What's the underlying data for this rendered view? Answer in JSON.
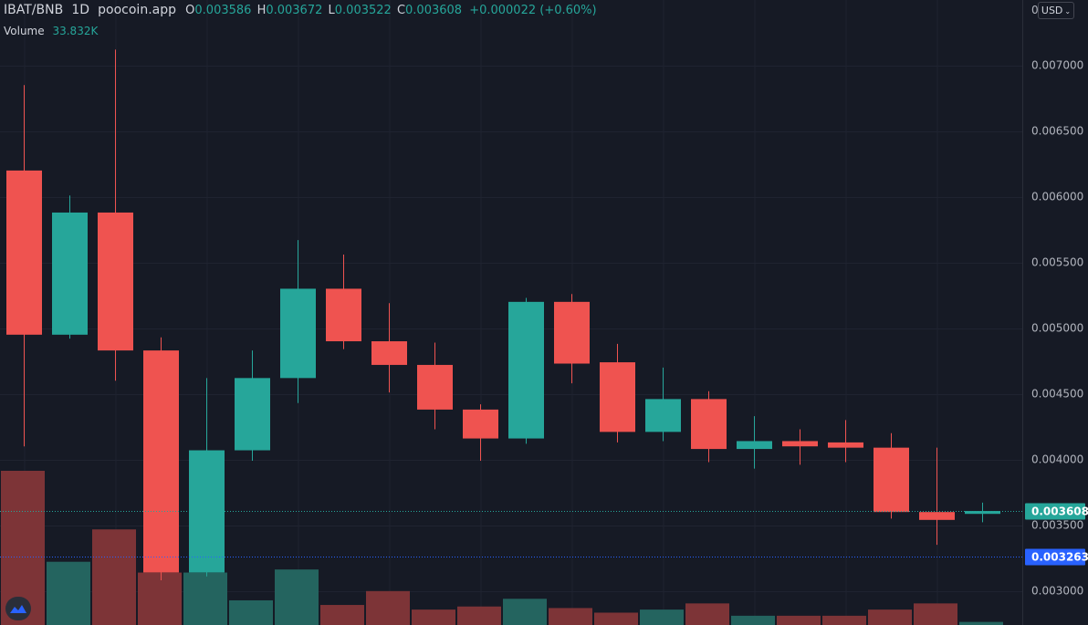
{
  "header": {
    "symbol": "IBAT/BNB",
    "interval": "1D",
    "source": "poocoin.app",
    "o_label": "O",
    "o_value": "0.003586",
    "h_label": "H",
    "h_value": "0.003672",
    "l_label": "L",
    "l_value": "0.003522",
    "c_label": "C",
    "c_value": "0.003608",
    "change": "+0.000022 (+0.60%)",
    "volume_label": "Volume",
    "volume_value": "33.832K"
  },
  "currency_selector": "USD",
  "top_axis_partial_label": "0",
  "colors": {
    "up": "#26a69a",
    "down": "#ef5350",
    "up_volume": "#24645f",
    "down_volume": "#7d3437",
    "background": "#161a25",
    "grid": "#1f2330",
    "axis_text": "#b2b5be",
    "last_price_tag": "#26a69a",
    "marker_tag": "#2962ff"
  },
  "chart_data": {
    "type": "candlestick",
    "y_axis": {
      "side": "right",
      "ticks": [
        "0.007000",
        "0.006500",
        "0.006000",
        "0.005500",
        "0.005000",
        "0.004500",
        "0.004000",
        "0.003500",
        "0.003000"
      ],
      "tick_values": [
        0.007,
        0.0065,
        0.006,
        0.0055,
        0.005,
        0.0045,
        0.004,
        0.0035,
        0.003
      ],
      "range": [
        0.00274,
        0.007498
      ]
    },
    "grid": true,
    "candles": [
      {
        "o": 0.0062,
        "h": 0.00685,
        "l": 0.0041,
        "c": 0.00495
      },
      {
        "o": 0.00495,
        "h": 0.00601,
        "l": 0.00492,
        "c": 0.00588
      },
      {
        "o": 0.00588,
        "h": 0.00712,
        "l": 0.0046,
        "c": 0.00483
      },
      {
        "o": 0.00483,
        "h": 0.00493,
        "l": 0.00308,
        "c": 0.00314
      },
      {
        "o": 0.00314,
        "h": 0.00462,
        "l": 0.00311,
        "c": 0.00407
      },
      {
        "o": 0.00407,
        "h": 0.00483,
        "l": 0.00399,
        "c": 0.00462
      },
      {
        "o": 0.00462,
        "h": 0.00567,
        "l": 0.00443,
        "c": 0.0053
      },
      {
        "o": 0.0053,
        "h": 0.00556,
        "l": 0.00484,
        "c": 0.0049
      },
      {
        "o": 0.0049,
        "h": 0.00519,
        "l": 0.00451,
        "c": 0.00472
      },
      {
        "o": 0.00472,
        "h": 0.00489,
        "l": 0.00423,
        "c": 0.00438
      },
      {
        "o": 0.00438,
        "h": 0.00442,
        "l": 0.00399,
        "c": 0.00416
      },
      {
        "o": 0.00416,
        "h": 0.00523,
        "l": 0.00412,
        "c": 0.0052
      },
      {
        "o": 0.0052,
        "h": 0.00526,
        "l": 0.00458,
        "c": 0.00473
      },
      {
        "o": 0.00474,
        "h": 0.00488,
        "l": 0.00413,
        "c": 0.00421
      },
      {
        "o": 0.00421,
        "h": 0.0047,
        "l": 0.00414,
        "c": 0.00446
      },
      {
        "o": 0.00446,
        "h": 0.00452,
        "l": 0.00398,
        "c": 0.00408
      },
      {
        "o": 0.00408,
        "h": 0.00433,
        "l": 0.00393,
        "c": 0.00414
      },
      {
        "o": 0.00414,
        "h": 0.00423,
        "l": 0.00396,
        "c": 0.0041
      },
      {
        "o": 0.00413,
        "h": 0.0043,
        "l": 0.00398,
        "c": 0.00409
      },
      {
        "o": 0.00409,
        "h": 0.0042,
        "l": 0.00355,
        "c": 0.0036
      },
      {
        "o": 0.0036,
        "h": 0.00409,
        "l": 0.00335,
        "c": 0.00354
      },
      {
        "o": 0.003586,
        "h": 0.003672,
        "l": 0.003522,
        "c": 0.003608
      }
    ],
    "volume_relative": [
      1.0,
      0.41,
      0.62,
      0.34,
      0.34,
      0.16,
      0.36,
      0.13,
      0.22,
      0.1,
      0.12,
      0.17,
      0.11,
      0.08,
      0.1,
      0.14,
      0.06,
      0.06,
      0.06,
      0.1,
      0.14,
      0.02
    ],
    "price_lines": [
      {
        "label": "0.003608",
        "value": 0.003608,
        "kind": "last"
      },
      {
        "label": "0.003263",
        "value": 0.003263,
        "kind": "marker"
      }
    ]
  }
}
